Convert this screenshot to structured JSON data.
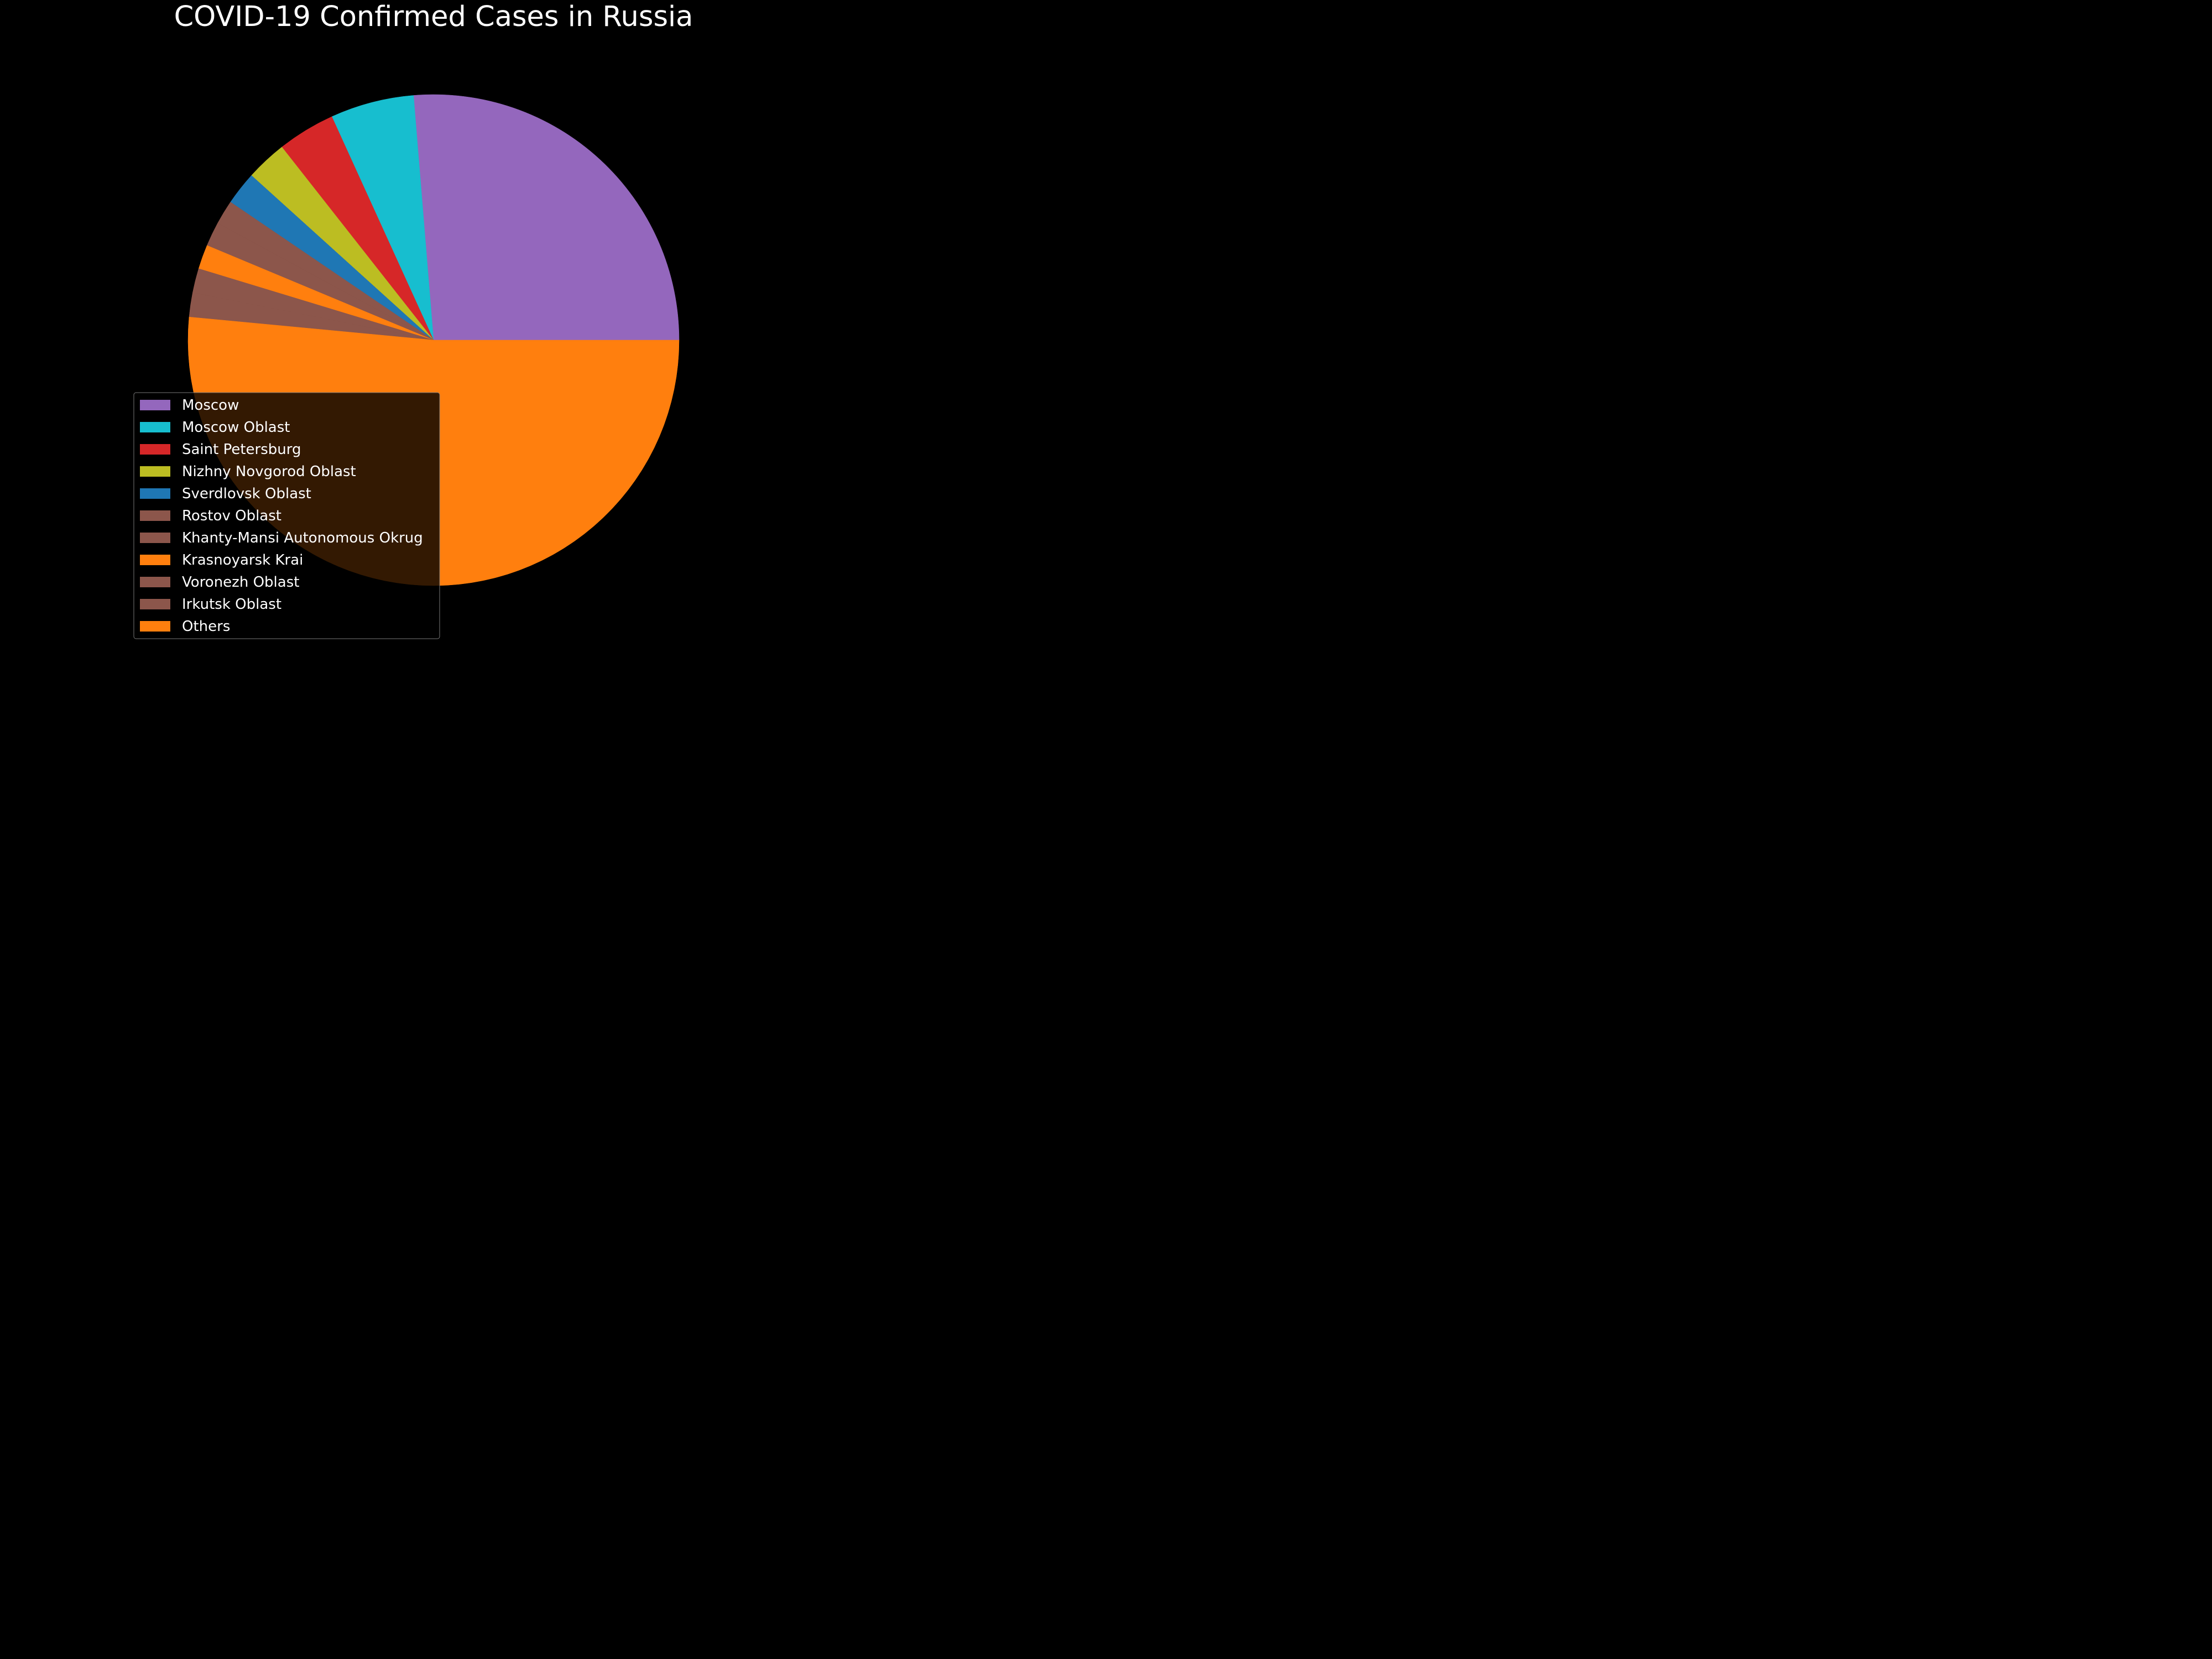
{
  "chart_data": {
    "type": "pie",
    "title": "COVID-19 Confirmed Cases in Russia",
    "start_angle_deg": 0,
    "direction": "counterclockwise",
    "legend_position": "lower-left",
    "background": "#000000",
    "slices": [
      {
        "label": "Moscow",
        "value": 26.3,
        "color": "#9467bd"
      },
      {
        "label": "Moscow Oblast",
        "value": 5.5,
        "color": "#17becf"
      },
      {
        "label": "Saint Petersburg",
        "value": 3.8,
        "color": "#d62728"
      },
      {
        "label": "Nizhny Novgorod Oblast",
        "value": 2.7,
        "color": "#bcbd22"
      },
      {
        "label": "Sverdlovsk Oblast",
        "value": 2.2,
        "color": "#1f77b4"
      },
      {
        "label": "Rostov Oblast",
        "value": 1.6,
        "color": "#8c564b"
      },
      {
        "label": "Khanty-Mansi Autonomous Okrug",
        "value": 1.6,
        "color": "#8c564b"
      },
      {
        "label": "Krasnoyarsk Krai",
        "value": 1.6,
        "color": "#ff7f0e"
      },
      {
        "label": "Voronezh Oblast",
        "value": 1.6,
        "color": "#8c564b"
      },
      {
        "label": "Irkutsk Oblast",
        "value": 1.6,
        "color": "#8c564b"
      },
      {
        "label": "Others",
        "value": 51.5,
        "color": "#ff7f0e"
      }
    ]
  }
}
